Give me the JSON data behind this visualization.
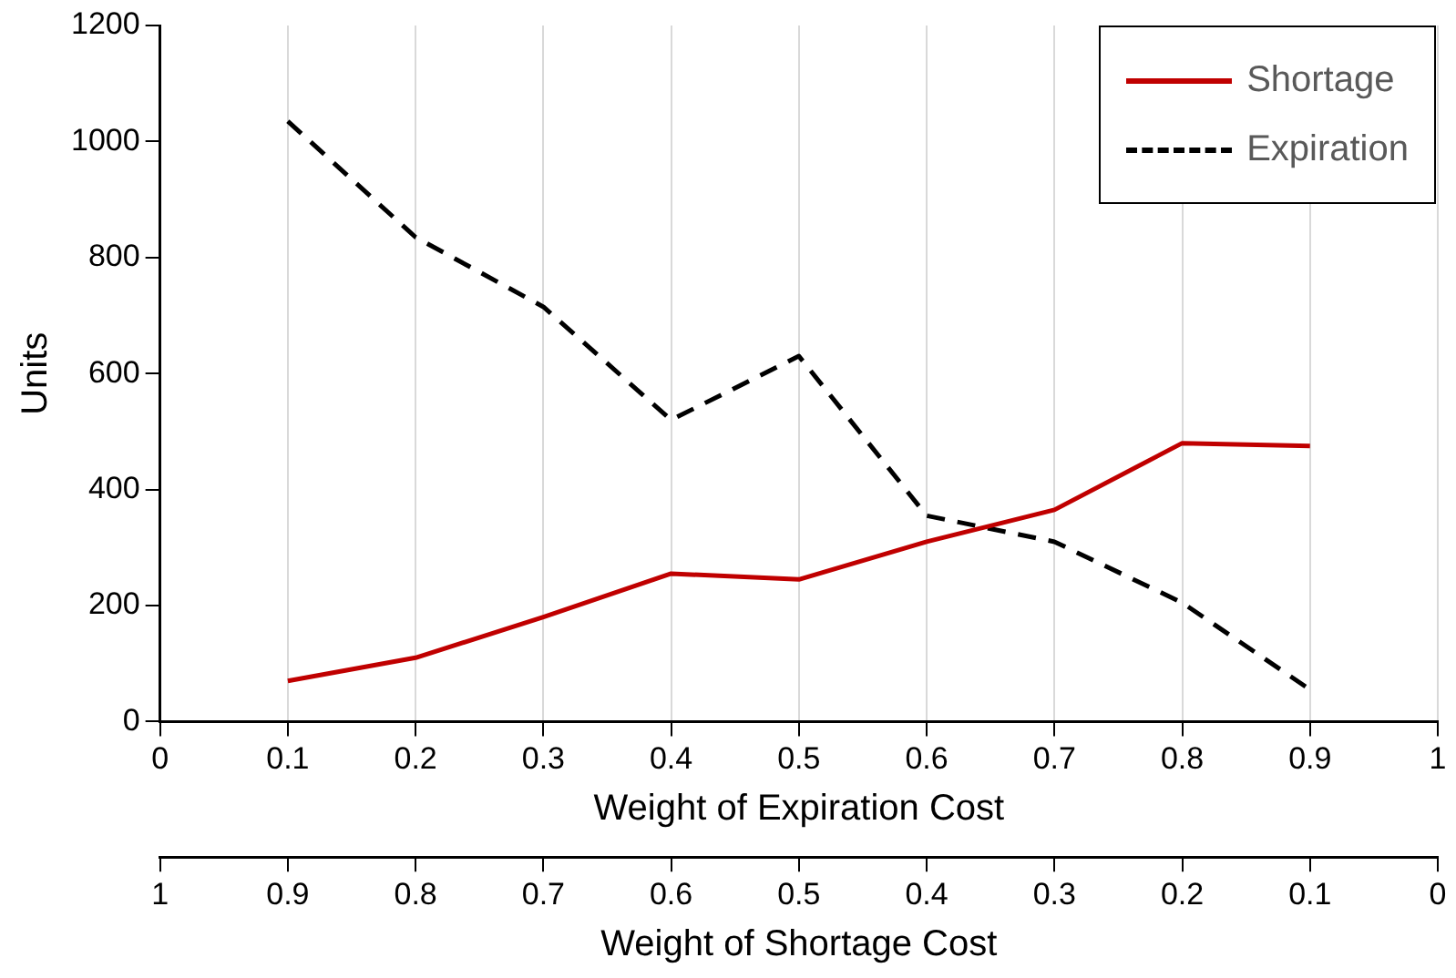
{
  "chart_data": {
    "type": "line",
    "xlabel": "Weight of Expiration Cost",
    "ylabel": "Units",
    "x2label": "Weight of Shortage Cost",
    "x": [
      0.1,
      0.2,
      0.3,
      0.4,
      0.5,
      0.6,
      0.7,
      0.8,
      0.9
    ],
    "series": [
      {
        "name": "Shortage",
        "color": "#c00000",
        "line_style": "solid",
        "values": [
          70,
          110,
          180,
          255,
          245,
          310,
          365,
          480,
          475
        ]
      },
      {
        "name": "Expiration",
        "color": "#000000",
        "line_style": "dashed",
        "values": [
          1035,
          835,
          715,
          520,
          630,
          355,
          310,
          205,
          55
        ]
      }
    ],
    "xlim": [
      0,
      1
    ],
    "xticks": [
      0,
      0.1,
      0.2,
      0.3,
      0.4,
      0.5,
      0.6,
      0.7,
      0.8,
      0.9,
      1
    ],
    "x2lim": [
      1,
      0
    ],
    "x2ticks": [
      1,
      0.9,
      0.8,
      0.7,
      0.6,
      0.5,
      0.4,
      0.3,
      0.2,
      0.1,
      0
    ],
    "ylim": [
      0,
      1200
    ],
    "yticks": [
      0,
      200,
      400,
      600,
      800,
      1000,
      1200
    ],
    "grid": "x",
    "legend": "top right",
    "marker": "none"
  }
}
